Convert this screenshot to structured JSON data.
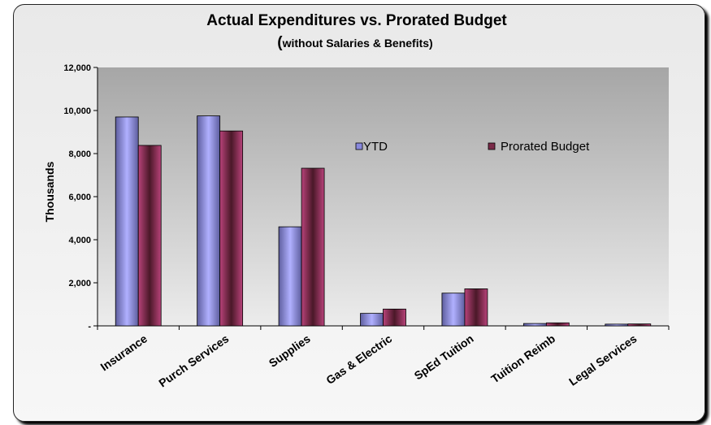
{
  "chart_data": {
    "type": "bar",
    "title": "Actual Expenditures vs. Prorated Budget",
    "subtitle_open": "(",
    "subtitle": "without Salaries & Benefits)",
    "ylabel": "Thousands",
    "ylim": [
      0,
      12000
    ],
    "yticks": [
      "-",
      "2,000",
      "4,000",
      "6,000",
      "8,000",
      "10,000",
      "12,000"
    ],
    "ytick_values": [
      0,
      2000,
      4000,
      6000,
      8000,
      10000,
      12000
    ],
    "categories": [
      "Insurance",
      "Purch Services",
      "Supplies",
      "Gas & Electric",
      "SpEd Tuition",
      "Tuition Reimb",
      "Legal Services"
    ],
    "series": [
      {
        "name": "YTD",
        "values": [
          9700,
          9750,
          4600,
          580,
          1520,
          110,
          80
        ]
      },
      {
        "name": "Prorated Budget",
        "values": [
          8380,
          9050,
          7320,
          780,
          1720,
          140,
          90
        ]
      }
    ],
    "legend_placement": "inside-top-right",
    "grid": false,
    "colors": {
      "ytd_edge": "#6a6aa8",
      "ytd_center": "#a8a8ff",
      "budget_edge": "#a83a6a",
      "budget_center": "#4a1a2a",
      "plot_top": "#a8a8a8",
      "plot_bottom": "#eaeaea"
    }
  }
}
